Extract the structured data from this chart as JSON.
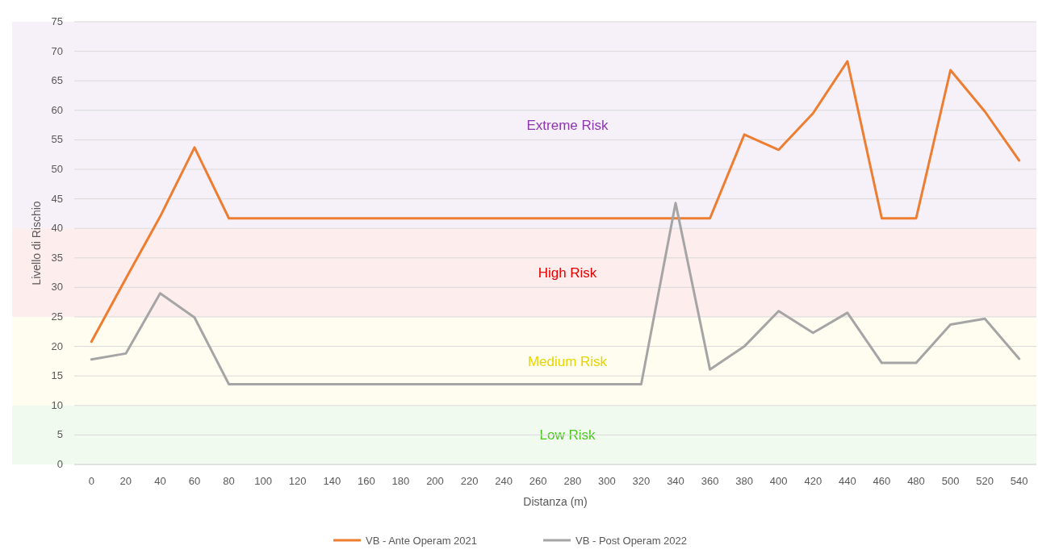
{
  "chart_data": {
    "type": "line",
    "xlabel": "Distanza (m)",
    "ylabel": "Livello di Rischio",
    "categories": [
      "0",
      "20",
      "40",
      "60",
      "80",
      "100",
      "120",
      "140",
      "160",
      "180",
      "200",
      "220",
      "240",
      "260",
      "280",
      "300",
      "320",
      "340",
      "360",
      "380",
      "400",
      "420",
      "440",
      "460",
      "480",
      "500",
      "520",
      "540"
    ],
    "series": [
      {
        "name": "VB - Ante Operam 2021",
        "color": "#ed7d31",
        "values": [
          20.8,
          31.5,
          42,
          53.7,
          41.7,
          41.7,
          41.7,
          41.7,
          41.7,
          41.7,
          41.7,
          41.7,
          41.7,
          41.7,
          41.7,
          41.7,
          41.7,
          41.7,
          41.7,
          55.9,
          53.3,
          59.5,
          68.3,
          41.7,
          41.7,
          66.8,
          59.8,
          51.5
        ]
      },
      {
        "name": "VB - Post Operam 2022",
        "color": "#a5a5a5",
        "values": [
          17.8,
          18.8,
          29,
          24.9,
          13.6,
          13.6,
          13.6,
          13.6,
          13.6,
          13.6,
          13.6,
          13.6,
          13.6,
          13.6,
          13.6,
          13.6,
          13.6,
          44.3,
          16.1,
          20,
          26,
          22.3,
          25.7,
          17.2,
          17.2,
          23.7,
          24.7,
          17.9
        ]
      }
    ],
    "ylim": [
      0,
      75
    ],
    "yticks": [
      0,
      5,
      10,
      15,
      20,
      25,
      30,
      35,
      40,
      45,
      50,
      55,
      60,
      65,
      70,
      75
    ],
    "grid": "y",
    "legend": "bottom",
    "marker": "none",
    "line_style": "solid",
    "bands": [
      {
        "axis": "y",
        "from": 0,
        "to": 10,
        "label": "Low Risk",
        "color": "#f1faee"
      },
      {
        "axis": "y",
        "from": 10,
        "to": 25,
        "label": "Medium Risk",
        "color": "#fefdf0"
      },
      {
        "axis": "y",
        "from": 25,
        "to": 40,
        "label": "High Risk",
        "color": "#fdeded"
      },
      {
        "axis": "y",
        "from": 40,
        "to": 75,
        "label": "Extreme Risk",
        "color": "#f6f1f8"
      }
    ]
  }
}
